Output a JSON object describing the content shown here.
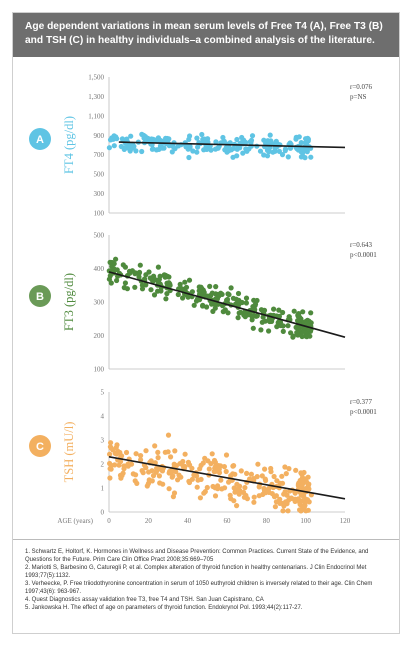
{
  "header": {
    "line1": "Age dependent variations in mean serum levels of Free T4 (A), Free T3 (B)",
    "line2": "and TSH (C) in healthy individuals–a combined analysis of the literature."
  },
  "chart_data": [
    {
      "type": "scatter",
      "badge": "A",
      "ylabel": "FT4 (pg/dl)",
      "ylim": [
        100,
        1500
      ],
      "yticks": [
        "100",
        "300",
        "500",
        "700",
        "900",
        "1,100",
        "1,300",
        "1,500"
      ],
      "stats": [
        "r=0.076",
        "p=NS"
      ],
      "trend": [
        [
          5,
          830
        ],
        [
          120,
          775
        ]
      ],
      "color": "#5fc4e4",
      "badge_color": "#5fc4e4",
      "label_color": "#5fc4e4"
    },
    {
      "type": "scatter",
      "badge": "B",
      "ylabel": "FT3 (pg/dl)",
      "ylim": [
        100,
        500
      ],
      "yticks": [
        "100",
        "200",
        "300",
        "400",
        "500"
      ],
      "stats": [
        "r=0.643",
        "p<0.0001"
      ],
      "trend": [
        [
          0,
          390
        ],
        [
          120,
          195
        ]
      ],
      "color": "#4f8a3d",
      "badge_color": "#6a9a57",
      "label_color": "#4f8a3d"
    },
    {
      "type": "scatter",
      "badge": "C",
      "ylabel": "TSH (mU/l)",
      "ylim": [
        0,
        5
      ],
      "yticks": [
        "0",
        "1",
        "2",
        "3",
        "4",
        "5"
      ],
      "stats": [
        "r=0.377",
        "p<0.0001"
      ],
      "trend": [
        [
          0,
          2.3
        ],
        [
          120,
          0.55
        ]
      ],
      "color": "#f3b060",
      "badge_color": "#f3b060",
      "label_color": "#f3b060"
    }
  ],
  "xaxis": {
    "label": "AGE (years)",
    "xlim": [
      0,
      120
    ],
    "ticks": [
      "0",
      "20",
      "40",
      "60",
      "80",
      "100",
      "120"
    ]
  },
  "references": [
    "1. Schwartz E, Holtorf, K. Hormones in Wellness and Disease Prevention: Common Practices. Current State of the Evidence, and Questions for the Future. Prim Care Clin Office Pract 2008;35:669–705",
    "2. Mariotti S, Barbesino G, Caturegli P, et al. Complex alteration of thyroid function in healthy centenarians. J Clin Endocrinol Met 1993;77(5):1132.",
    "3. Verheecke, P. Free triiodothyronine concentration in serum of 1050 euthyroid children is inversely related to their age. Clin Chem 1997;43(6): 963-967.",
    "4. Quest Diagnostics assay validation free T3, free T4 and TSH. San Juan Capistrano, CA",
    "5. Jankowska H. The effect of age on parameters of thyroid function. Endokrynol Pol. 1993;44(2):117-27."
  ]
}
